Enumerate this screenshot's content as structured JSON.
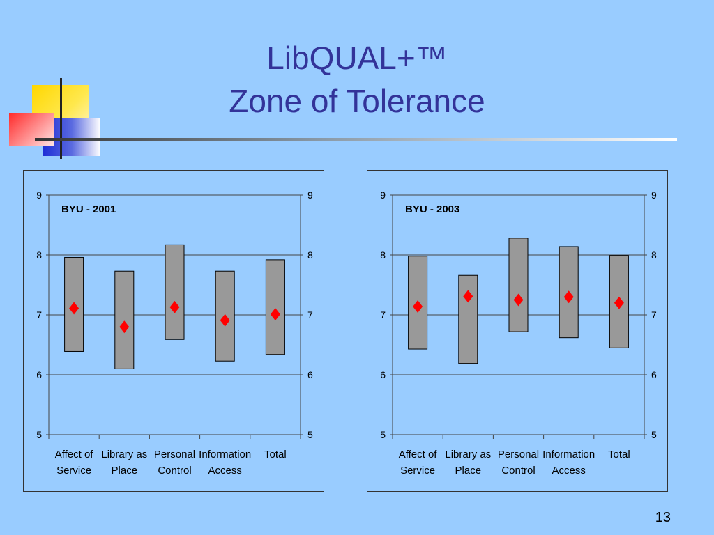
{
  "slide": {
    "title_line1": "LibQUAL+™",
    "title_line2": "Zone of Tolerance",
    "page_number": "13"
  },
  "colors": {
    "background": "#99ccff",
    "title": "#333399",
    "bar_fill": "#999999",
    "marker": "#ff0000"
  },
  "chart_data": [
    {
      "type": "bar",
      "title": "BYU - 2001",
      "categories": [
        [
          "Affect of",
          "Service"
        ],
        [
          "Library as",
          "Place"
        ],
        [
          "Personal",
          "Control"
        ],
        [
          "Information",
          "Access"
        ],
        [
          "Total"
        ]
      ],
      "series": [
        {
          "name": "",
          "kind": "floating-bar",
          "low": [
            6.39,
            6.1,
            6.59,
            6.23,
            6.34
          ],
          "high": [
            7.96,
            7.73,
            8.17,
            7.73,
            7.92
          ]
        },
        {
          "name": "",
          "kind": "marker",
          "values": [
            7.11,
            6.8,
            7.13,
            6.91,
            7.01
          ]
        }
      ],
      "ylim": [
        5,
        9
      ],
      "yticks": [
        5,
        6,
        7,
        8,
        9
      ],
      "secondary_y_axis": true,
      "grid": true
    },
    {
      "type": "bar",
      "title": "BYU - 2003",
      "categories": [
        [
          "Affect of",
          "Service"
        ],
        [
          "Library as",
          "Place"
        ],
        [
          "Personal",
          "Control"
        ],
        [
          "Information",
          "Access"
        ],
        [
          "Total"
        ]
      ],
      "series": [
        {
          "name": "",
          "kind": "floating-bar",
          "low": [
            6.43,
            6.19,
            6.72,
            6.62,
            6.45
          ],
          "high": [
            7.98,
            7.66,
            8.28,
            8.14,
            7.99
          ]
        },
        {
          "name": "",
          "kind": "marker",
          "values": [
            7.14,
            7.31,
            7.25,
            7.3,
            7.2
          ]
        }
      ],
      "ylim": [
        5,
        9
      ],
      "yticks": [
        5,
        6,
        7,
        8,
        9
      ],
      "secondary_y_axis": true,
      "grid": true
    }
  ]
}
